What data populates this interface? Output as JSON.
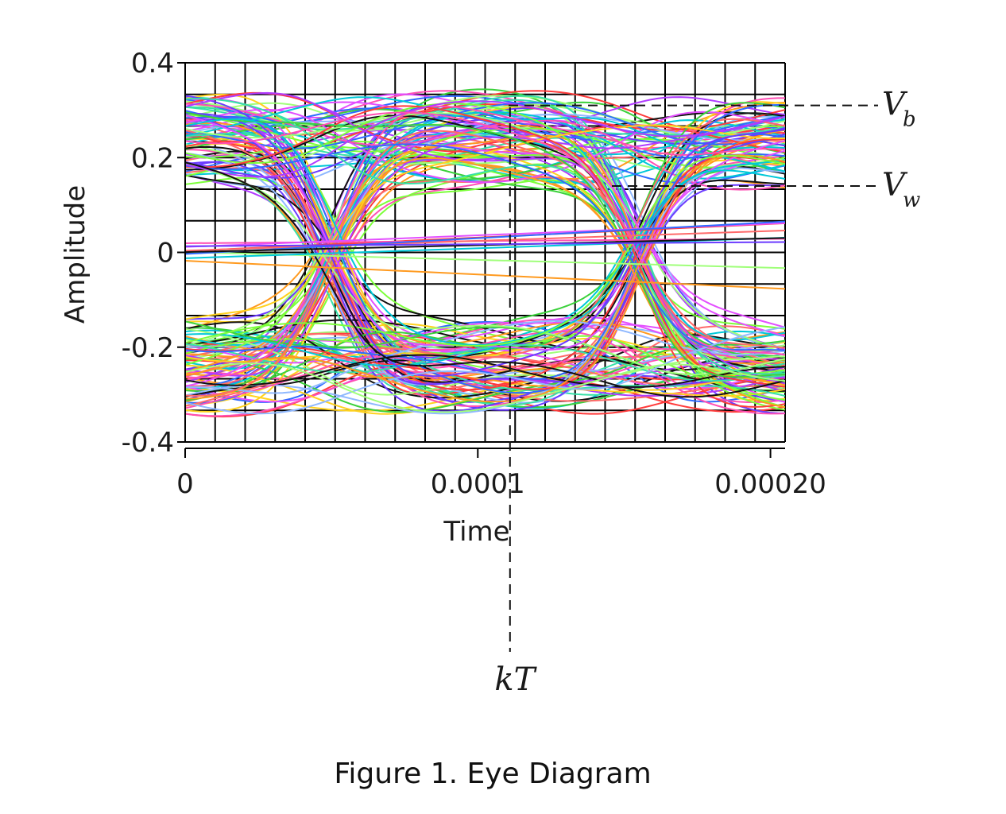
{
  "chart_data": {
    "type": "line",
    "title": "",
    "xlabel": "Time",
    "ylabel": "Amplitude",
    "xlim": [
      0,
      0.000205
    ],
    "ylim": [
      -0.4,
      0.4
    ],
    "x_ticks": [
      {
        "value": 0,
        "label": "0"
      },
      {
        "value": 0.0001,
        "label": "0.0001"
      },
      {
        "value": 0.0002,
        "label": "0.00020"
      }
    ],
    "y_ticks": [
      {
        "value": 0.4,
        "label": "0.4"
      },
      {
        "value": 0.2,
        "label": "0.2"
      },
      {
        "value": 0,
        "label": "0"
      },
      {
        "value": -0.2,
        "label": "-0.2"
      },
      {
        "value": -0.4,
        "label": "-0.4"
      }
    ],
    "grid": true,
    "legend": "none",
    "description_of_traces": "many overlaid multicolored signal traces forming an eye pattern",
    "eye_crossings_x": [
      5e-05,
      0.000155
    ],
    "eye_center_x": 0.000111,
    "high_level_band": [
      0.13,
      0.35
    ],
    "low_level_band": [
      -0.35,
      -0.13
    ],
    "annotations": [
      {
        "label": "V",
        "subscript": "b",
        "y": 0.31
      },
      {
        "label": "V",
        "subscript": "w",
        "y": 0.14
      },
      {
        "label": "kT",
        "x": 0.000111
      }
    ]
  },
  "caption": "Figure 1.  Eye Diagram"
}
